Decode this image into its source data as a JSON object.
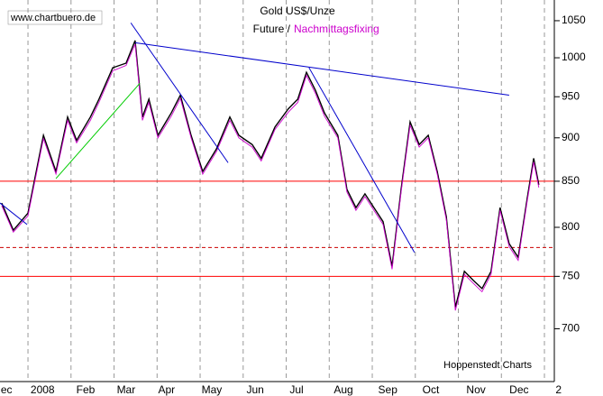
{
  "chart_data": {
    "type": "line",
    "title": "Gold US$/Unze",
    "watermark": "www.chartbuero.de",
    "source": "Hoppenstedt Charts",
    "log_scale": true,
    "xlim": [
      0.35,
      13.23
    ],
    "ylim": [
      653,
      1079
    ],
    "yticks": [
      700,
      750,
      800,
      850,
      900,
      950,
      1000,
      1050
    ],
    "xticks": [
      {
        "value": 0.5,
        "label": "ec"
      },
      {
        "value": 1.34,
        "label": "2008"
      },
      {
        "value": 2.34,
        "label": "Feb"
      },
      {
        "value": 3.28,
        "label": "Mar"
      },
      {
        "value": 4.22,
        "label": "Apr"
      },
      {
        "value": 5.27,
        "label": "May"
      },
      {
        "value": 6.28,
        "label": "Jun"
      },
      {
        "value": 7.24,
        "label": "Jul"
      },
      {
        "value": 8.33,
        "label": "Aug"
      },
      {
        "value": 9.36,
        "label": "Sep"
      },
      {
        "value": 10.36,
        "label": "Oct"
      },
      {
        "value": 11.41,
        "label": "Nov"
      },
      {
        "value": 12.41,
        "label": "Dec"
      },
      {
        "value": 13.33,
        "label": "2"
      }
    ],
    "xgrid": [
      1,
      2,
      3,
      4,
      5,
      6,
      7,
      8,
      9,
      10,
      11,
      12,
      13
    ],
    "x": [
      0.39,
      0.66,
      1.0,
      1.36,
      1.65,
      1.92,
      2.13,
      2.45,
      2.65,
      2.97,
      3.28,
      3.49,
      3.66,
      3.81,
      4.02,
      4.33,
      4.54,
      4.79,
      5.06,
      5.38,
      5.69,
      5.9,
      6.21,
      6.42,
      6.74,
      7.05,
      7.27,
      7.47,
      7.68,
      7.89,
      8.2,
      8.41,
      8.62,
      8.83,
      9.04,
      9.25,
      9.46,
      9.67,
      9.88,
      10.09,
      10.3,
      10.51,
      10.72,
      10.93,
      11.14,
      11.35,
      11.55,
      11.76,
      11.97,
      12.18,
      12.39,
      12.6,
      12.75,
      12.87
    ],
    "series": [
      {
        "name": "Future /",
        "color": "#000000",
        "values": [
          826,
          797,
          815,
          903,
          861,
          925,
          897,
          925,
          947,
          987,
          993,
          1023,
          925,
          947,
          903,
          930,
          952,
          903,
          861,
          887,
          925,
          903,
          892,
          876,
          913,
          935,
          947,
          981,
          958,
          930,
          903,
          841,
          821,
          836,
          821,
          806,
          760,
          841,
          919,
          892,
          903,
          861,
          811,
          720,
          755,
          746,
          738,
          755,
          821,
          783,
          769,
          831,
          876,
          846
        ]
      },
      {
        "name": "Nachmittagsfixing",
        "color": "#cc00cc",
        "values": [
          823,
          795,
          812,
          899,
          858,
          921,
          894,
          921,
          943,
          983,
          990,
          1018,
          921,
          943,
          900,
          926,
          948,
          900,
          858,
          884,
          921,
          900,
          889,
          873,
          910,
          931,
          943,
          977,
          954,
          926,
          900,
          838,
          818,
          833,
          818,
          803,
          757,
          838,
          915,
          889,
          900,
          858,
          808,
          717,
          752,
          743,
          735,
          752,
          818,
          780,
          766,
          828,
          872,
          843
        ]
      }
    ],
    "trend_lines": [
      {
        "color": "#00cc00",
        "x": [
          1.65,
          3.6
        ],
        "values": [
          853,
          967
        ]
      },
      {
        "color": "#0000cc",
        "x": [
          0.35,
          0.98
        ],
        "values": [
          826,
          803
        ]
      },
      {
        "color": "#0000cc",
        "x": [
          3.39,
          5.65
        ],
        "values": [
          1047,
          871
        ]
      },
      {
        "color": "#0000cc",
        "x": [
          3.49,
          12.18
        ],
        "values": [
          1020,
          952
        ]
      },
      {
        "color": "#0000cc",
        "x": [
          7.53,
          9.98
        ],
        "values": [
          987,
          774
        ]
      }
    ],
    "hlines": [
      {
        "value": 850,
        "color": "#ff0000",
        "style": "solid"
      },
      {
        "value": 779,
        "color": "#cc0000",
        "style": "dashed"
      },
      {
        "value": 750,
        "color": "#ff0000",
        "style": "solid"
      }
    ]
  }
}
